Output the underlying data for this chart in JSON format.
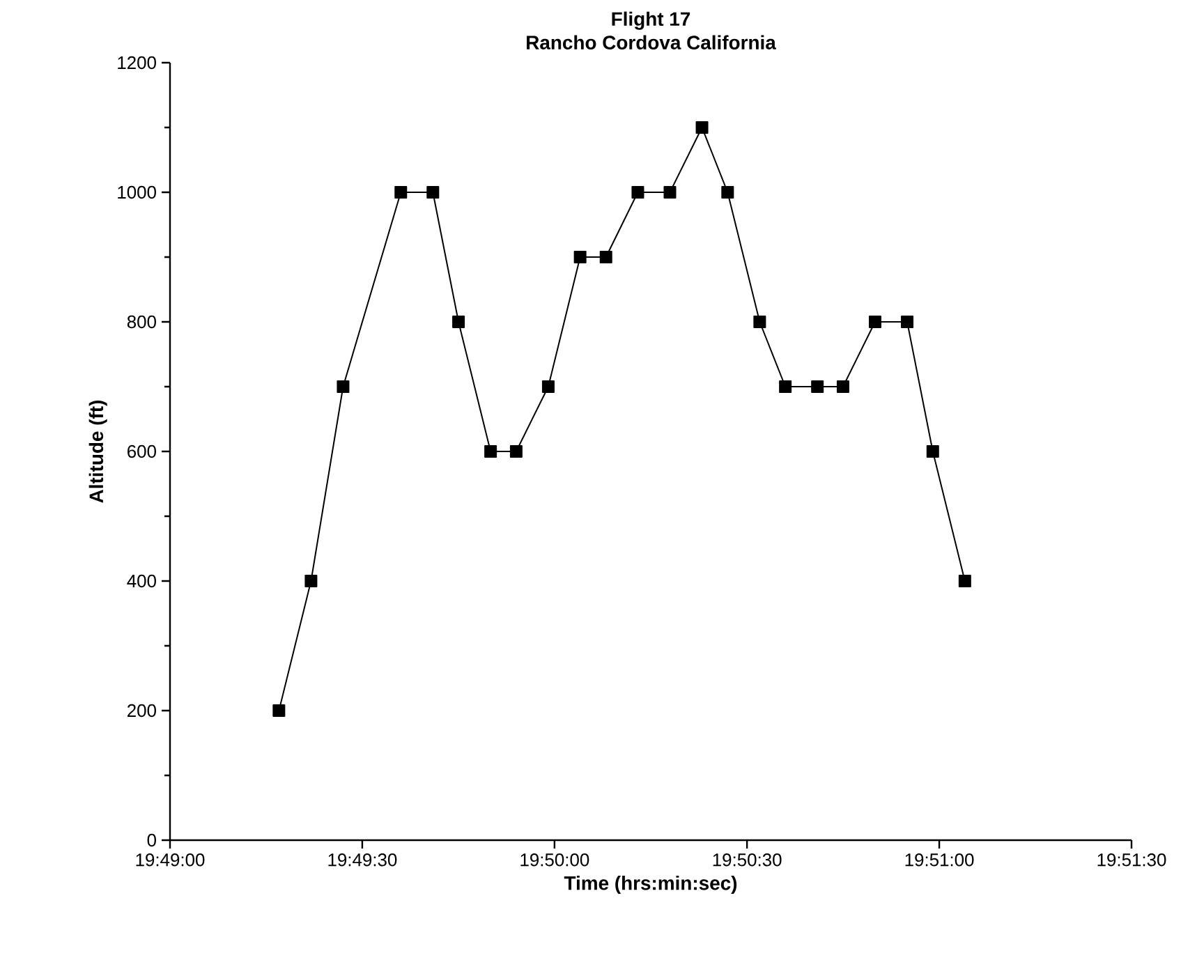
{
  "chart_data": {
    "type": "line",
    "title": "Flight 17",
    "subtitle": "Rancho Cordova California",
    "xlabel": "Time (hrs:min:sec)",
    "ylabel": "Altitude (ft)",
    "x": [
      19.82139,
      19.82278,
      19.82417,
      19.82667,
      19.82806,
      19.82917,
      19.83056,
      19.83167,
      19.83306,
      19.83444,
      19.83556,
      19.83694,
      19.83833,
      19.83972,
      19.84083,
      19.84222,
      19.84333,
      19.84472,
      19.84583,
      19.84722,
      19.84861,
      19.84972,
      19.85111
    ],
    "series": [
      {
        "color": "#000000",
        "values": [
          200,
          400,
          700,
          1000,
          1000,
          800,
          600,
          600,
          700,
          900,
          900,
          1000,
          1000,
          1100,
          1000,
          800,
          700,
          700,
          700,
          800,
          800,
          600,
          400
        ]
      }
    ],
    "xlim": [
      19.81667,
      19.85833
    ],
    "xticks": [
      {
        "value": 19.81667,
        "label": "19:49:00"
      },
      {
        "value": 19.825,
        "label": "19:49:30"
      },
      {
        "value": 19.83333,
        "label": "19:50:00"
      },
      {
        "value": 19.84167,
        "label": "19:50:30"
      },
      {
        "value": 19.85,
        "label": "19:51:00"
      },
      {
        "value": 19.85833,
        "label": "19:51:30"
      }
    ],
    "ylim": [
      0,
      1200
    ],
    "yticks": [
      0,
      200,
      400,
      600,
      800,
      1000,
      1200
    ],
    "grid": false,
    "marker": "square",
    "line_style": "solid"
  }
}
